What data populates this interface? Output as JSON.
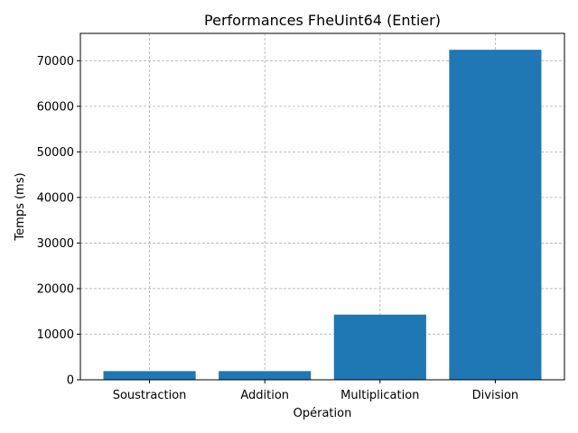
{
  "chart_data": {
    "type": "bar",
    "title": "Performances FheUint64 (Entier)",
    "xlabel": "Opération",
    "ylabel": "Temps (ms)",
    "categories": [
      "Soustraction",
      "Addition",
      "Multiplication",
      "Division"
    ],
    "values": [
      1900,
      1900,
      14300,
      72400
    ],
    "ylim": [
      0,
      76000
    ],
    "yticks": [
      0,
      10000,
      20000,
      30000,
      40000,
      50000,
      60000,
      70000
    ],
    "grid": true,
    "bar_color": "#1f77b4"
  }
}
